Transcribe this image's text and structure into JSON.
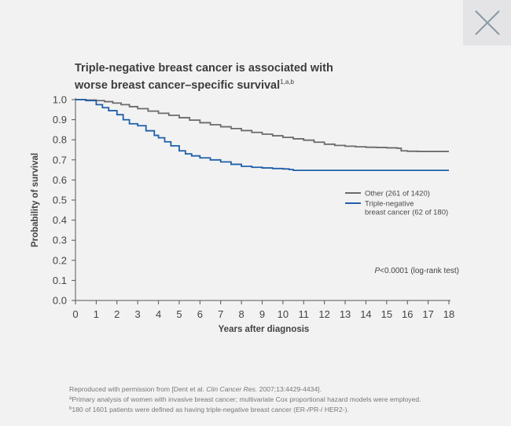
{
  "header": {
    "title_line1": "Triple-negative breast cancer is associated with",
    "title_line2": "worse breast cancer–specific survival",
    "title_superscript": "1,a,b"
  },
  "close_icon": "close-icon",
  "chart_data": {
    "type": "line",
    "xlabel": "Years after diagnosis",
    "ylabel": "Probability of survival",
    "xlim": [
      0,
      18
    ],
    "ylim": [
      0.0,
      1.0
    ],
    "x_ticks": [
      "0",
      "1",
      "2",
      "3",
      "4",
      "5",
      "6",
      "7",
      "8",
      "9",
      "10",
      "11",
      "12",
      "13",
      "14",
      "15",
      "16",
      "17",
      "18"
    ],
    "y_ticks": [
      "0.0",
      "0.1",
      "0.2",
      "0.3",
      "0.4",
      "0.5",
      "0.6",
      "0.7",
      "0.8",
      "0.9",
      "1.0"
    ],
    "grid": false,
    "legend_position": "right",
    "annotation": {
      "p_italic": "P",
      "text": "<0.0001 (log-rank test)"
    },
    "series": [
      {
        "name": "Other (261 of 1420)",
        "color": "#6b6b6b",
        "x": [
          0,
          0.5,
          1.0,
          1.4,
          1.8,
          2.2,
          2.6,
          3.0,
          3.5,
          4.0,
          4.5,
          5.0,
          5.5,
          6.0,
          6.5,
          7.0,
          7.5,
          8.0,
          8.5,
          9.0,
          9.5,
          10.0,
          10.5,
          11.0,
          11.5,
          12.0,
          12.5,
          13.0,
          13.5,
          14.0,
          14.5,
          15.0,
          15.5,
          15.7,
          16.0,
          16.5,
          17.0,
          18.0
        ],
        "y": [
          1.0,
          0.998,
          0.995,
          0.99,
          0.983,
          0.975,
          0.965,
          0.955,
          0.943,
          0.932,
          0.922,
          0.91,
          0.898,
          0.885,
          0.875,
          0.865,
          0.856,
          0.846,
          0.837,
          0.828,
          0.82,
          0.812,
          0.805,
          0.798,
          0.788,
          0.778,
          0.772,
          0.768,
          0.765,
          0.763,
          0.762,
          0.76,
          0.758,
          0.745,
          0.743,
          0.742,
          0.742,
          0.742
        ]
      },
      {
        "name": "Triple-negative breast cancer (62 of 180)",
        "name_line1": "Triple-negative",
        "name_line2": "breast cancer (62 of 180)",
        "color": "#1f5fa8",
        "x": [
          0,
          0.5,
          1.0,
          1.3,
          1.6,
          2.0,
          2.3,
          2.6,
          3.0,
          3.4,
          3.8,
          4.0,
          4.3,
          4.6,
          5.0,
          5.3,
          5.6,
          6.0,
          6.5,
          7.0,
          7.5,
          8.0,
          8.5,
          9.0,
          9.5,
          10.0,
          10.3,
          10.5,
          11.0,
          12.0,
          14.0,
          16.0,
          18.0
        ],
        "y": [
          1.0,
          0.995,
          0.975,
          0.96,
          0.945,
          0.925,
          0.9,
          0.88,
          0.87,
          0.845,
          0.822,
          0.81,
          0.79,
          0.77,
          0.745,
          0.73,
          0.72,
          0.71,
          0.7,
          0.69,
          0.678,
          0.668,
          0.663,
          0.66,
          0.657,
          0.655,
          0.652,
          0.648,
          0.648,
          0.648,
          0.648,
          0.648,
          0.648
        ]
      }
    ]
  },
  "footnotes": {
    "line1_pre": "Reproduced with permission from [Dent et al. ",
    "line1_ital": "Clin Cancer Res.",
    "line1_post": " 2007;13:4429-4434].",
    "line2_sup": "a",
    "line2": "Primary analysis of women with invasive breast cancer; multivariate Cox proportional hazard models were employed.",
    "line3_sup": "b",
    "line3": "180 of 1601 patients were defined as having triple-negative breast cancer (ER-/PR-/ HER2-)."
  }
}
